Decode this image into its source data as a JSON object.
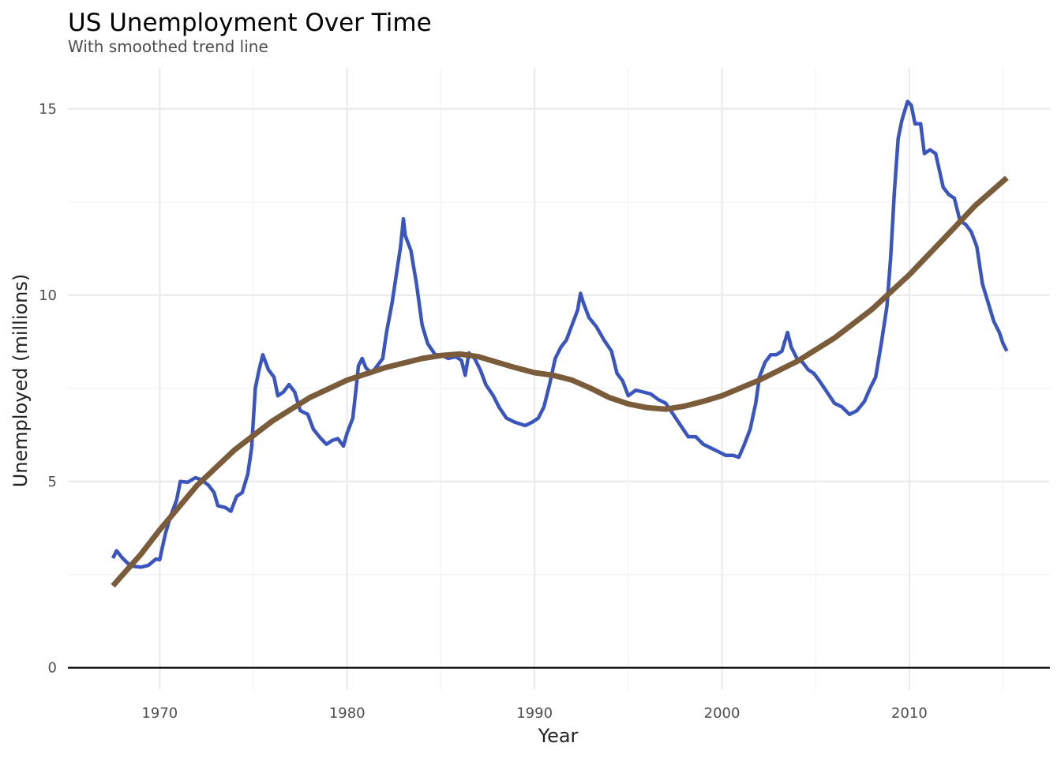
{
  "chart_data": {
    "type": "line",
    "title": "US Unemployment Over Time",
    "subtitle": "With smoothed trend line",
    "xlabel": "Year",
    "ylabel": "Unemployed (millions)",
    "xlim": [
      1965.1,
      2017.5
    ],
    "ylim": [
      -0.6,
      16.1
    ],
    "x_ticks": [
      1970,
      1980,
      1990,
      2000,
      2010
    ],
    "y_ticks": [
      0,
      5,
      10,
      15
    ],
    "x_tick_labels": [
      "1970",
      "1980",
      "1990",
      "2000",
      "2010"
    ],
    "y_tick_labels": [
      "0",
      "5",
      "10",
      "15"
    ],
    "grid": true,
    "reference_line": {
      "y": 0,
      "color": "#000000"
    },
    "legend": "none",
    "series": [
      {
        "style": "raw",
        "color": "#3a55bd",
        "points": [
          [
            1967.5,
            2.94
          ],
          [
            1967.7,
            3.14
          ],
          [
            1968.0,
            2.95
          ],
          [
            1968.3,
            2.8
          ],
          [
            1968.6,
            2.72
          ],
          [
            1969.0,
            2.7
          ],
          [
            1969.4,
            2.75
          ],
          [
            1969.8,
            2.92
          ],
          [
            1970.0,
            2.9
          ],
          [
            1970.3,
            3.6
          ],
          [
            1970.6,
            4.1
          ],
          [
            1970.9,
            4.5
          ],
          [
            1971.1,
            5.0
          ],
          [
            1971.5,
            4.98
          ],
          [
            1971.9,
            5.1
          ],
          [
            1972.2,
            5.05
          ],
          [
            1972.6,
            4.9
          ],
          [
            1972.9,
            4.7
          ],
          [
            1973.1,
            4.35
          ],
          [
            1973.5,
            4.3
          ],
          [
            1973.8,
            4.2
          ],
          [
            1974.1,
            4.6
          ],
          [
            1974.4,
            4.7
          ],
          [
            1974.7,
            5.2
          ],
          [
            1974.9,
            5.9
          ],
          [
            1975.1,
            7.5
          ],
          [
            1975.3,
            8.0
          ],
          [
            1975.5,
            8.4
          ],
          [
            1975.8,
            8.0
          ],
          [
            1976.1,
            7.8
          ],
          [
            1976.3,
            7.3
          ],
          [
            1976.6,
            7.4
          ],
          [
            1976.9,
            7.6
          ],
          [
            1977.2,
            7.4
          ],
          [
            1977.5,
            6.9
          ],
          [
            1977.9,
            6.8
          ],
          [
            1978.2,
            6.4
          ],
          [
            1978.6,
            6.15
          ],
          [
            1978.9,
            6.0
          ],
          [
            1979.2,
            6.1
          ],
          [
            1979.5,
            6.15
          ],
          [
            1979.8,
            5.95
          ],
          [
            1980.0,
            6.3
          ],
          [
            1980.3,
            6.7
          ],
          [
            1980.5,
            7.6
          ],
          [
            1980.6,
            8.1
          ],
          [
            1980.8,
            8.3
          ],
          [
            1981.0,
            8.05
          ],
          [
            1981.3,
            7.9
          ],
          [
            1981.6,
            8.1
          ],
          [
            1981.9,
            8.3
          ],
          [
            1982.1,
            9.0
          ],
          [
            1982.4,
            9.8
          ],
          [
            1982.7,
            10.8
          ],
          [
            1982.85,
            11.3
          ],
          [
            1983.0,
            12.05
          ],
          [
            1983.1,
            11.6
          ],
          [
            1983.4,
            11.2
          ],
          [
            1983.7,
            10.3
          ],
          [
            1984.0,
            9.2
          ],
          [
            1984.3,
            8.7
          ],
          [
            1984.7,
            8.4
          ],
          [
            1985.0,
            8.4
          ],
          [
            1985.4,
            8.3
          ],
          [
            1985.8,
            8.35
          ],
          [
            1986.1,
            8.25
          ],
          [
            1986.3,
            7.85
          ],
          [
            1986.5,
            8.45
          ],
          [
            1986.8,
            8.3
          ],
          [
            1987.1,
            8.0
          ],
          [
            1987.4,
            7.6
          ],
          [
            1987.8,
            7.3
          ],
          [
            1988.1,
            7.0
          ],
          [
            1988.5,
            6.7
          ],
          [
            1988.9,
            6.6
          ],
          [
            1989.2,
            6.55
          ],
          [
            1989.5,
            6.5
          ],
          [
            1989.9,
            6.6
          ],
          [
            1990.2,
            6.7
          ],
          [
            1990.5,
            7.0
          ],
          [
            1990.8,
            7.6
          ],
          [
            1991.1,
            8.3
          ],
          [
            1991.4,
            8.6
          ],
          [
            1991.7,
            8.8
          ],
          [
            1992.0,
            9.2
          ],
          [
            1992.3,
            9.6
          ],
          [
            1992.45,
            10.05
          ],
          [
            1992.6,
            9.8
          ],
          [
            1992.9,
            9.4
          ],
          [
            1993.3,
            9.15
          ],
          [
            1993.7,
            8.8
          ],
          [
            1994.1,
            8.5
          ],
          [
            1994.4,
            7.9
          ],
          [
            1994.7,
            7.7
          ],
          [
            1995.0,
            7.3
          ],
          [
            1995.4,
            7.45
          ],
          [
            1995.8,
            7.4
          ],
          [
            1996.2,
            7.35
          ],
          [
            1996.6,
            7.2
          ],
          [
            1997.0,
            7.1
          ],
          [
            1997.4,
            6.8
          ],
          [
            1997.8,
            6.5
          ],
          [
            1998.2,
            6.2
          ],
          [
            1998.6,
            6.2
          ],
          [
            1999.0,
            6.0
          ],
          [
            1999.4,
            5.9
          ],
          [
            1999.8,
            5.8
          ],
          [
            2000.2,
            5.7
          ],
          [
            2000.6,
            5.7
          ],
          [
            2000.9,
            5.65
          ],
          [
            2001.2,
            6.0
          ],
          [
            2001.5,
            6.4
          ],
          [
            2001.8,
            7.1
          ],
          [
            2002.0,
            7.8
          ],
          [
            2002.3,
            8.2
          ],
          [
            2002.6,
            8.4
          ],
          [
            2002.9,
            8.4
          ],
          [
            2003.2,
            8.5
          ],
          [
            2003.5,
            9.0
          ],
          [
            2003.7,
            8.6
          ],
          [
            2004.0,
            8.3
          ],
          [
            2004.3,
            8.2
          ],
          [
            2004.6,
            8.0
          ],
          [
            2004.9,
            7.9
          ],
          [
            2005.2,
            7.7
          ],
          [
            2005.6,
            7.4
          ],
          [
            2006.0,
            7.1
          ],
          [
            2006.4,
            7.0
          ],
          [
            2006.8,
            6.8
          ],
          [
            2007.2,
            6.9
          ],
          [
            2007.6,
            7.15
          ],
          [
            2007.9,
            7.5
          ],
          [
            2008.2,
            7.8
          ],
          [
            2008.5,
            8.7
          ],
          [
            2008.8,
            9.7
          ],
          [
            2009.0,
            11.0
          ],
          [
            2009.2,
            12.8
          ],
          [
            2009.4,
            14.2
          ],
          [
            2009.6,
            14.7
          ],
          [
            2009.9,
            15.2
          ],
          [
            2010.1,
            15.1
          ],
          [
            2010.3,
            14.6
          ],
          [
            2010.6,
            14.6
          ],
          [
            2010.8,
            13.8
          ],
          [
            2011.1,
            13.9
          ],
          [
            2011.4,
            13.8
          ],
          [
            2011.8,
            12.9
          ],
          [
            2012.1,
            12.7
          ],
          [
            2012.4,
            12.6
          ],
          [
            2012.7,
            12.0
          ],
          [
            2013.0,
            11.9
          ],
          [
            2013.3,
            11.7
          ],
          [
            2013.6,
            11.3
          ],
          [
            2013.9,
            10.3
          ],
          [
            2014.2,
            9.8
          ],
          [
            2014.5,
            9.3
          ],
          [
            2014.8,
            9.0
          ],
          [
            2015.0,
            8.7
          ],
          [
            2015.2,
            8.5
          ]
        ]
      },
      {
        "style": "smoothed",
        "color": "#7a5c3a",
        "points": [
          [
            1967.5,
            2.2
          ],
          [
            1969.0,
            3.05
          ],
          [
            1970.0,
            3.7
          ],
          [
            1972.0,
            4.9
          ],
          [
            1974.0,
            5.85
          ],
          [
            1976.0,
            6.62
          ],
          [
            1978.0,
            7.25
          ],
          [
            1980.0,
            7.72
          ],
          [
            1982.0,
            8.05
          ],
          [
            1984.0,
            8.3
          ],
          [
            1985.0,
            8.38
          ],
          [
            1986.0,
            8.42
          ],
          [
            1987.0,
            8.35
          ],
          [
            1988.0,
            8.2
          ],
          [
            1989.0,
            8.05
          ],
          [
            1990.0,
            7.92
          ],
          [
            1991.0,
            7.85
          ],
          [
            1992.0,
            7.72
          ],
          [
            1993.0,
            7.5
          ],
          [
            1994.0,
            7.25
          ],
          [
            1995.0,
            7.08
          ],
          [
            1996.0,
            6.98
          ],
          [
            1997.0,
            6.94
          ],
          [
            1998.0,
            7.02
          ],
          [
            1999.0,
            7.15
          ],
          [
            2000.0,
            7.3
          ],
          [
            2002.0,
            7.72
          ],
          [
            2004.0,
            8.22
          ],
          [
            2006.0,
            8.85
          ],
          [
            2008.0,
            9.62
          ],
          [
            2010.0,
            10.55
          ],
          [
            2012.0,
            11.6
          ],
          [
            2013.5,
            12.4
          ],
          [
            2015.2,
            13.15
          ]
        ]
      }
    ]
  }
}
